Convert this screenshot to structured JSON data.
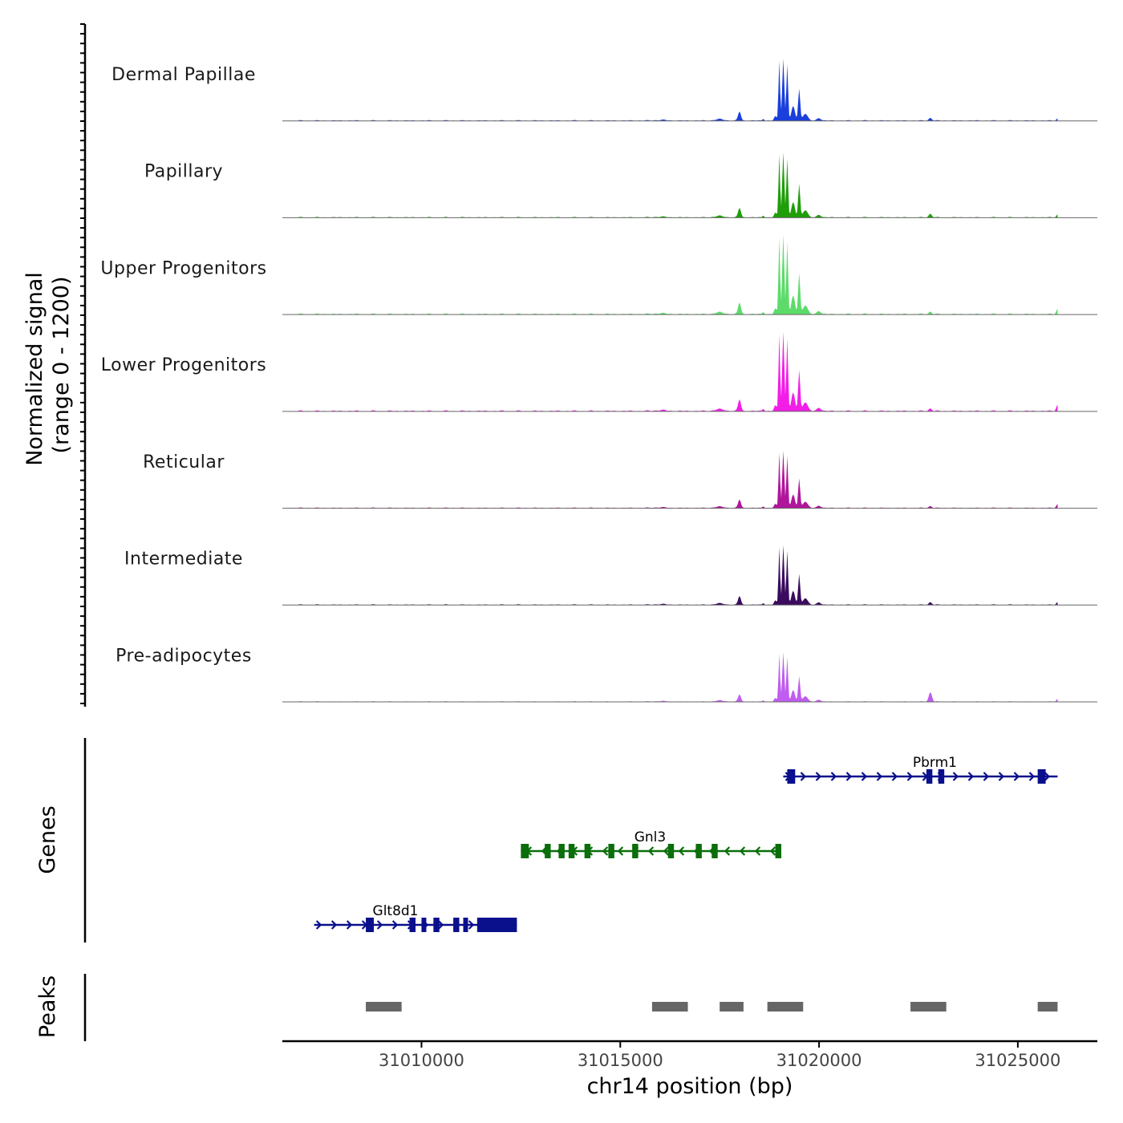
{
  "chart_data": {
    "type": "area",
    "title": "",
    "ylabel_line1": "Normalized signal",
    "ylabel_line2": "(range 0 - 1200)",
    "xlabel": "chr14 position (bp)",
    "signal_range": [
      0,
      1200
    ],
    "xlim": [
      31006500,
      31027000
    ],
    "x_ticks": [
      31010000,
      31015000,
      31020000,
      31025000
    ],
    "x_tick_labels": [
      "31010000",
      "31015000",
      "31020000",
      "31025000"
    ],
    "grid": false,
    "tracks": [
      {
        "name": "Dermal Papillae",
        "color": "#1a3fdc",
        "scale": 0.78,
        "p2280": 0.04,
        "p2750": 0.04,
        "p2920": 0.03
      },
      {
        "name": "Papillary",
        "color": "#1f9e0a",
        "scale": 0.82,
        "p2280": 0.05,
        "p2750": 0.05,
        "p2920": 0.04
      },
      {
        "name": "Upper Progenitors",
        "color": "#5ddb6a",
        "scale": 1.0,
        "p2280": 0.03,
        "p2750": 0.03,
        "p2920": 0.06
      },
      {
        "name": "Lower Progenitors",
        "color": "#f21ee8",
        "scale": 1.0,
        "p2280": 0.03,
        "p2750": 0.03,
        "p2920": 0.07
      },
      {
        "name": "Reticular",
        "color": "#b0169c",
        "scale": 0.72,
        "p2280": 0.03,
        "p2750": 0.03,
        "p2920": 0.06
      },
      {
        "name": "Intermediate",
        "color": "#3a0b5e",
        "scale": 0.75,
        "p2280": 0.04,
        "p2750": 0.04,
        "p2920": 0.04
      },
      {
        "name": "Pre-adipocytes",
        "color": "#c05cf0",
        "scale": 0.62,
        "p2280": 0.17,
        "p2750": 0.03,
        "p2920": 0.05
      }
    ],
    "genes_label": "Genes",
    "genes": [
      {
        "name": "Pbrm1",
        "strand": "+",
        "start": 31019100,
        "end": 31026000,
        "color": "#0a0f8c",
        "exons": [
          [
            31019200,
            31019400
          ],
          [
            31022700,
            31022850
          ],
          [
            31023000,
            31023150
          ],
          [
            31025500,
            31025700
          ]
        ]
      },
      {
        "name": "Gnl3",
        "strand": "-",
        "start": 31012500,
        "end": 31019000,
        "color": "#0a6e0a",
        "exons": [
          [
            31012500,
            31012700
          ],
          [
            31013100,
            31013250
          ],
          [
            31013450,
            31013600
          ],
          [
            31013700,
            31013850
          ],
          [
            31014100,
            31014250
          ],
          [
            31014700,
            31014850
          ],
          [
            31015300,
            31015450
          ],
          [
            31016200,
            31016350
          ],
          [
            31016900,
            31017050
          ],
          [
            31017300,
            31017450
          ],
          [
            31018900,
            31019050
          ]
        ]
      },
      {
        "name": "Glt8d1",
        "strand": "+",
        "start": 31007300,
        "end": 31012400,
        "color": "#0a0f8c",
        "exons": [
          [
            31008600,
            31008800
          ],
          [
            31009700,
            31009850
          ],
          [
            31010000,
            31010100
          ],
          [
            31010300,
            31010450
          ],
          [
            31010800,
            31010950
          ],
          [
            31011050,
            31011150
          ],
          [
            31011400,
            31012400
          ]
        ]
      }
    ],
    "peaks_label": "Peaks",
    "peaks": [
      [
        31008600,
        31009500
      ],
      [
        31015800,
        31016700
      ],
      [
        31017500,
        31018100
      ],
      [
        31018700,
        31019600
      ],
      [
        31022300,
        31023200
      ],
      [
        31025500,
        31026000
      ]
    ]
  }
}
